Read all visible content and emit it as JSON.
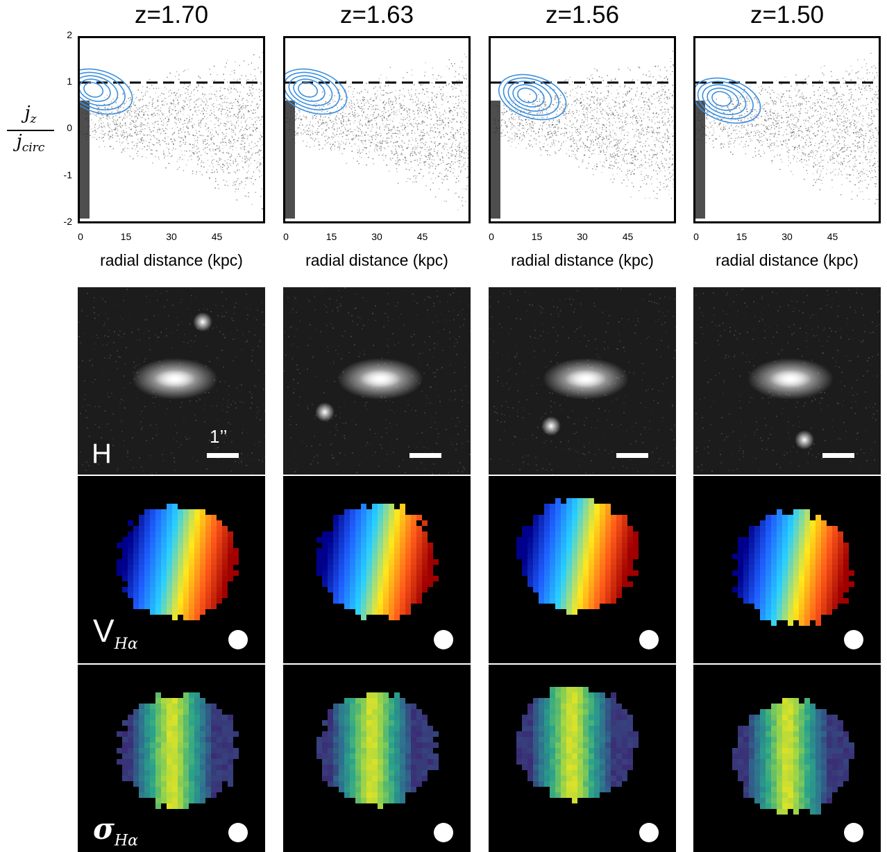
{
  "columns": [
    {
      "title": "z=1.70",
      "scale_label": "1’’"
    },
    {
      "title": "z=1.63",
      "scale_label": ""
    },
    {
      "title": "z=1.56",
      "scale_label": ""
    },
    {
      "title": "z=1.50",
      "scale_label": ""
    }
  ],
  "y_axis": {
    "label_numerator": "j",
    "label_numerator_sub": "z",
    "label_denominator": "j",
    "label_denominator_sub": "circ",
    "ticks": [
      "2",
      "1",
      "0",
      "-1",
      "-2"
    ]
  },
  "x_axis": {
    "label": "radial distance (kpc)",
    "ticks": [
      "0",
      "15",
      "30",
      "45"
    ]
  },
  "row_labels": {
    "h_band": "H",
    "velocity": "V",
    "velocity_sub": "Hα",
    "dispersion": "σ",
    "dispersion_sub": "Hα"
  },
  "colors": {
    "contour": "#3b8fe0",
    "dashed_line": "#000000",
    "velocity_cmap": [
      "#00008b",
      "#1f5fff",
      "#28d0ff",
      "#ffe81a",
      "#ff5a1a",
      "#a00000"
    ],
    "dispersion_cmap": [
      "#3b2a74",
      "#2f6d8e",
      "#2aa48a",
      "#8fd14f",
      "#f7e81a"
    ]
  },
  "chart_data": [
    {
      "type": "scatter",
      "title": "z=1.70",
      "xlabel": "radial distance (kpc)",
      "ylabel": "j_z / j_circ",
      "xlim": [
        0,
        60
      ],
      "ylim": [
        -2,
        2
      ],
      "hline": 1
    },
    {
      "type": "scatter",
      "title": "z=1.63",
      "xlabel": "radial distance (kpc)",
      "ylabel": "j_z / j_circ",
      "xlim": [
        0,
        60
      ],
      "ylim": [
        -2,
        2
      ],
      "hline": 1
    },
    {
      "type": "scatter",
      "title": "z=1.56",
      "xlabel": "radial distance (kpc)",
      "ylabel": "j_z / j_circ",
      "xlim": [
        0,
        60
      ],
      "ylim": [
        -2,
        2
      ],
      "hline": 1
    },
    {
      "type": "scatter",
      "title": "z=1.50",
      "xlabel": "radial distance (kpc)",
      "ylabel": "j_z / j_circ",
      "xlim": [
        0,
        60
      ],
      "ylim": [
        -2,
        2
      ],
      "hline": 1
    }
  ]
}
